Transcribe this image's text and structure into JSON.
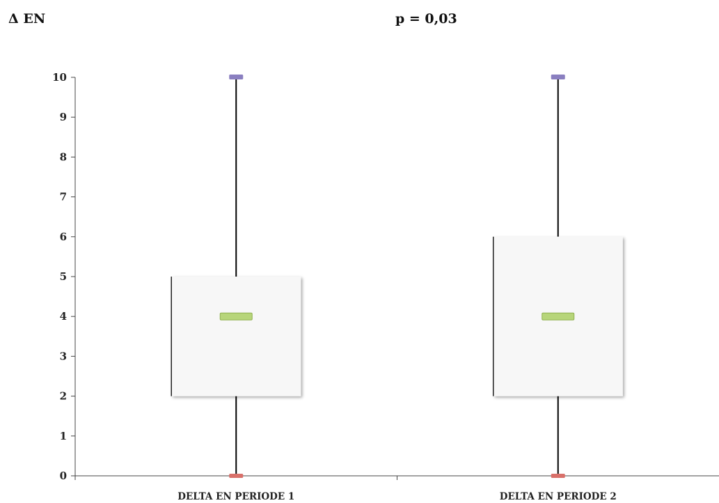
{
  "chart_data": {
    "type": "box",
    "title_left": "Δ EN",
    "title_center": "p = 0,03",
    "ylim": [
      0,
      10
    ],
    "yticks": [
      0,
      1,
      2,
      3,
      4,
      5,
      6,
      7,
      8,
      9,
      10
    ],
    "categories": [
      "DELTA EN PERIODE 1",
      "DELTA EN PERIODE 2"
    ],
    "boxes": [
      {
        "min": 0,
        "q1": 2,
        "median": 4,
        "q3": 5,
        "max": 10
      },
      {
        "min": 0,
        "q1": 2,
        "median": 4,
        "q3": 6,
        "max": 10
      }
    ],
    "colors": {
      "box_fill": "#f7f7f7",
      "median": "#b7d57a",
      "median_stroke": "#8fb04f",
      "max_marker": "#8a7fc0",
      "min_marker": "#d9706a",
      "axis": "#444444"
    }
  }
}
